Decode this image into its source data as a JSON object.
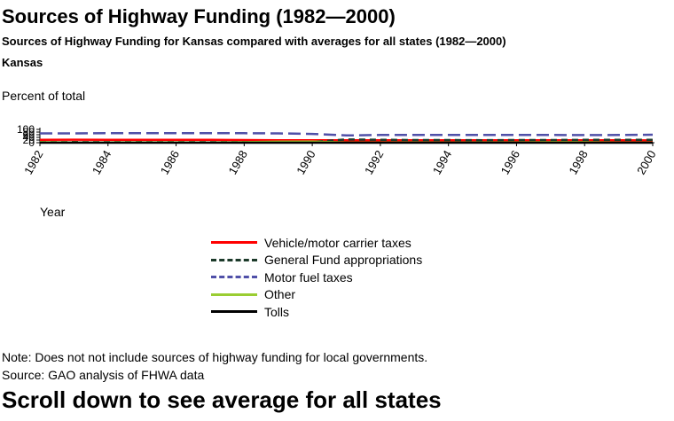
{
  "header": {
    "title": "Sources of Highway Funding (1982—2000)",
    "subtitle": "Sources of Highway Funding for Kansas compared with averages for all states (1982—2000)",
    "state": "Kansas"
  },
  "footer": {
    "note": "Note: Does not not include sources of highway funding for local governments.",
    "source": "Source: GAO analysis of FHWA data",
    "scroll_hint": "Scroll down to see average for all states"
  },
  "chart_data": {
    "type": "line",
    "title": "Sources of Highway Funding (1982—2000)",
    "ylabel": "Percent of total",
    "xlabel": "Year",
    "ylim": [
      0,
      100
    ],
    "y_ticks": [
      0,
      20,
      40,
      60,
      80,
      100
    ],
    "x_ticks": [
      "1982",
      "1984",
      "1986",
      "1988",
      "1990",
      "1992",
      "1994",
      "1996",
      "1998",
      "2000"
    ],
    "x": [
      1982,
      1983,
      1984,
      1985,
      1986,
      1987,
      1988,
      1989,
      1990,
      1991,
      1992,
      1993,
      1994,
      1995,
      1996,
      1997,
      1998,
      1999,
      2000
    ],
    "legend_position": "bottom",
    "series": [
      {
        "name": "Vehicle/motor carrier taxes",
        "color": "#ff0000",
        "dash": "solid",
        "values": [
          22,
          23,
          22,
          21,
          21,
          22,
          20,
          19,
          19,
          18,
          18,
          19,
          19,
          19,
          18,
          18,
          18,
          18,
          17
        ]
      },
      {
        "name": "General Fund appropriations",
        "color": "#1c3a2a",
        "dash": "dashed",
        "values": [
          4,
          5,
          4,
          5,
          4,
          4,
          5,
          4,
          6,
          25,
          22,
          20,
          20,
          19,
          20,
          20,
          21,
          22,
          22
        ]
      },
      {
        "name": "Motor fuel taxes",
        "color": "#5050a8",
        "dash": "longdash",
        "values": [
          70,
          70,
          72,
          71,
          72,
          72,
          71,
          70,
          66,
          55,
          58,
          58,
          59,
          59,
          59,
          58,
          57,
          58,
          60
        ]
      },
      {
        "name": "Other",
        "color": "#9acd32",
        "dash": "solid",
        "values": [
          4,
          2,
          2,
          3,
          3,
          2,
          4,
          7,
          9,
          2,
          2,
          3,
          2,
          3,
          3,
          4,
          4,
          2,
          1
        ]
      },
      {
        "name": "Tolls",
        "color": "#000000",
        "dash": "solid",
        "values": [
          0,
          0,
          0,
          0,
          0,
          0,
          0,
          0,
          0,
          0,
          0,
          0,
          0,
          0,
          0,
          0,
          0,
          0,
          0
        ]
      }
    ]
  }
}
